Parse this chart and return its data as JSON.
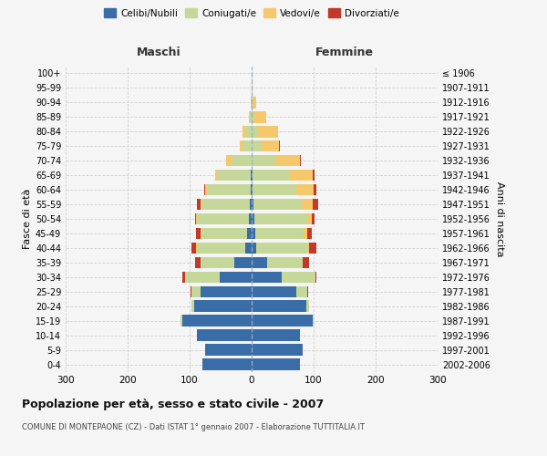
{
  "age_groups": [
    "0-4",
    "5-9",
    "10-14",
    "15-19",
    "20-24",
    "25-29",
    "30-34",
    "35-39",
    "40-44",
    "45-49",
    "50-54",
    "55-59",
    "60-64",
    "65-69",
    "70-74",
    "75-79",
    "80-84",
    "85-89",
    "90-94",
    "95-99",
    "100+"
  ],
  "birth_years": [
    "2002-2006",
    "1997-2001",
    "1992-1996",
    "1987-1991",
    "1982-1986",
    "1977-1981",
    "1972-1976",
    "1967-1971",
    "1962-1966",
    "1957-1961",
    "1952-1956",
    "1947-1951",
    "1942-1946",
    "1937-1941",
    "1932-1936",
    "1927-1931",
    "1922-1926",
    "1917-1921",
    "1912-1916",
    "1907-1911",
    "≤ 1906"
  ],
  "male": {
    "celibi": [
      80,
      75,
      88,
      112,
      92,
      82,
      52,
      28,
      10,
      8,
      4,
      3,
      2,
      2,
      0,
      0,
      0,
      0,
      0,
      0,
      0
    ],
    "coniugati": [
      0,
      0,
      0,
      2,
      5,
      15,
      55,
      55,
      78,
      73,
      83,
      78,
      68,
      52,
      33,
      14,
      9,
      3,
      1,
      0,
      0
    ],
    "vedovi": [
      0,
      0,
      0,
      0,
      0,
      0,
      0,
      0,
      1,
      1,
      2,
      2,
      5,
      5,
      8,
      5,
      5,
      2,
      0,
      0,
      0
    ],
    "divorziati": [
      0,
      0,
      0,
      0,
      0,
      2,
      5,
      8,
      8,
      8,
      2,
      5,
      2,
      0,
      0,
      0,
      0,
      0,
      0,
      0,
      0
    ]
  },
  "female": {
    "nubili": [
      78,
      82,
      78,
      98,
      88,
      72,
      48,
      25,
      8,
      6,
      4,
      3,
      2,
      2,
      0,
      0,
      0,
      0,
      0,
      0,
      0
    ],
    "coniugate": [
      0,
      0,
      0,
      2,
      5,
      18,
      55,
      58,
      82,
      78,
      85,
      78,
      70,
      58,
      38,
      16,
      10,
      5,
      2,
      0,
      0
    ],
    "vedove": [
      0,
      0,
      0,
      0,
      0,
      0,
      0,
      0,
      2,
      5,
      8,
      18,
      28,
      38,
      40,
      28,
      32,
      18,
      5,
      1,
      0
    ],
    "divorziate": [
      0,
      0,
      0,
      0,
      0,
      1,
      2,
      10,
      12,
      8,
      5,
      8,
      5,
      4,
      2,
      2,
      1,
      1,
      0,
      0,
      0
    ]
  },
  "colors": {
    "celibi": "#3a6ca8",
    "coniugati": "#c5d89a",
    "vedovi": "#f5c96b",
    "divorziati": "#c0392b"
  },
  "title": "Popolazione per età, sesso e stato civile - 2007",
  "subtitle": "COMUNE DI MONTEPAONE (CZ) - Dati ISTAT 1° gennaio 2007 - Elaborazione TUTTITALIA.IT",
  "xlabel_left": "Maschi",
  "xlabel_right": "Femmine",
  "ylabel_left": "Fasce di età",
  "ylabel_right": "Anni di nascita",
  "xlim": 300,
  "bg_color": "#f5f5f5",
  "grid_color": "#cccccc"
}
